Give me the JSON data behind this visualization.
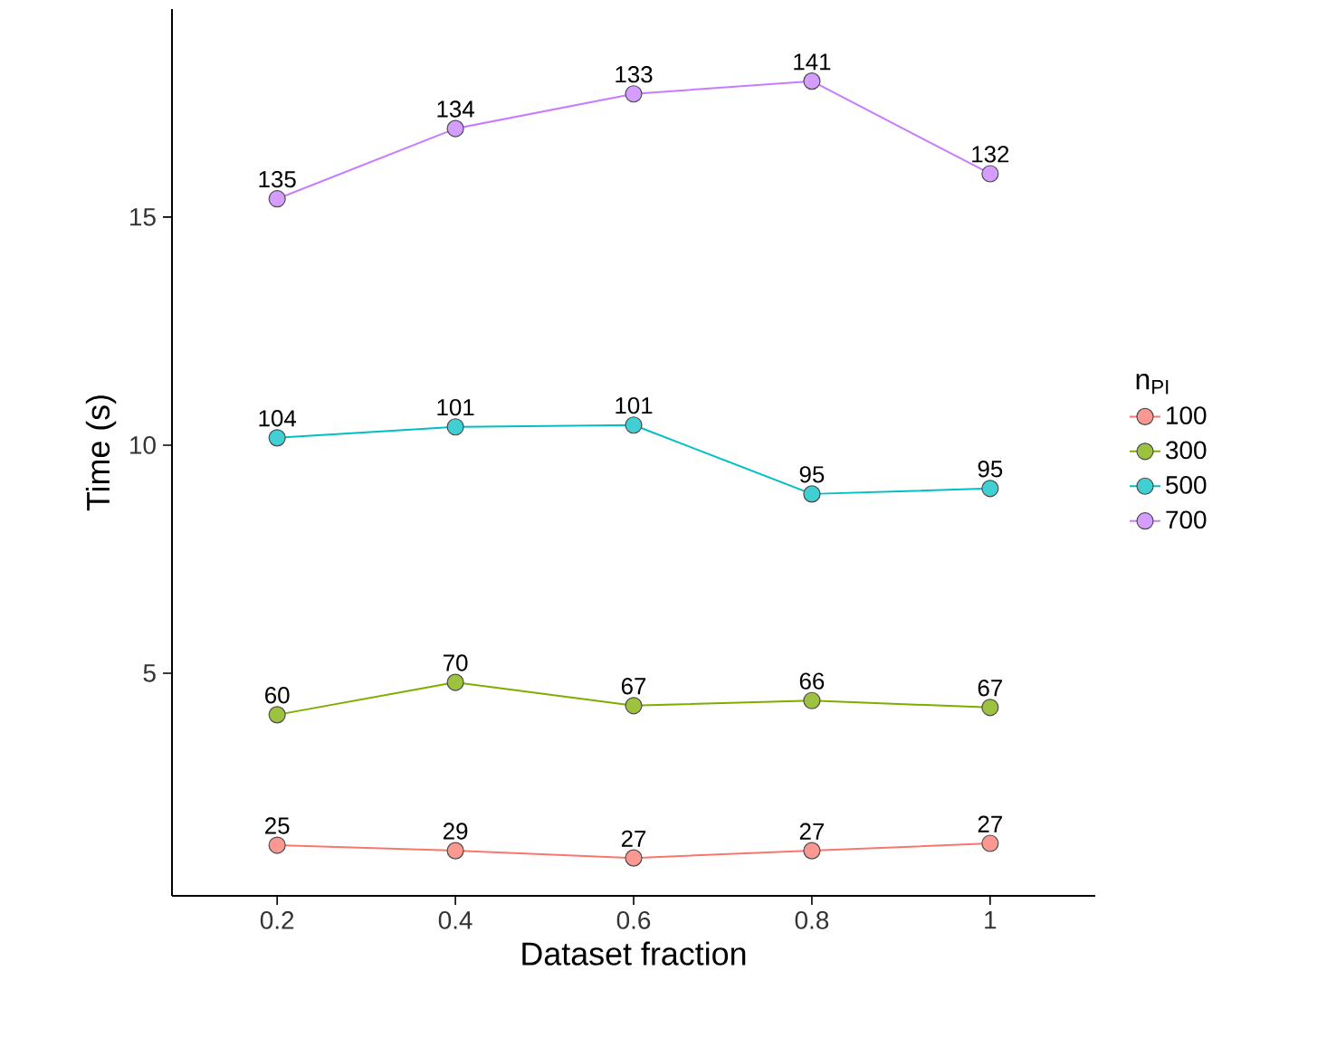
{
  "chart_data": {
    "type": "line",
    "xlabel": "Dataset fraction",
    "ylabel": "Time (s)",
    "legend_title": "n$_{PI}$",
    "x": [
      0.2,
      0.4,
      0.6,
      0.8,
      1
    ],
    "series": [
      {
        "name": "100",
        "color": "#f8766d",
        "values": [
          1.23,
          1.11,
          0.95,
          1.11,
          1.27
        ]
      },
      {
        "name": "300",
        "color": "#7cae00",
        "values": [
          4.09,
          4.8,
          4.29,
          4.4,
          4.25
        ]
      },
      {
        "name": "500",
        "color": "#00bfc4",
        "values": [
          10.16,
          10.4,
          10.44,
          8.93,
          9.05
        ]
      },
      {
        "name": "700",
        "color": "#c77cff",
        "values": [
          15.4,
          16.94,
          17.7,
          17.98,
          15.95
        ]
      }
    ],
    "annotations": [
      {
        "text": "25",
        "x": 0.2,
        "y": 1.23
      },
      {
        "text": "29",
        "x": 0.4,
        "y": 1.11
      },
      {
        "text": "27",
        "x": 0.6,
        "y": 0.95
      },
      {
        "text": "27",
        "x": 0.8,
        "y": 1.11
      },
      {
        "text": "27",
        "x": 1,
        "y": 1.27
      },
      {
        "text": "60",
        "x": 0.2,
        "y": 4.09
      },
      {
        "text": "70",
        "x": 0.4,
        "y": 4.8
      },
      {
        "text": "67",
        "x": 0.6,
        "y": 4.29
      },
      {
        "text": "66",
        "x": 0.8,
        "y": 4.4
      },
      {
        "text": "67",
        "x": 1,
        "y": 4.25
      },
      {
        "text": "104",
        "x": 0.2,
        "y": 10.16
      },
      {
        "text": "101",
        "x": 0.4,
        "y": 10.4
      },
      {
        "text": "101",
        "x": 0.6,
        "y": 10.44
      },
      {
        "text": "95",
        "x": 0.8,
        "y": 8.93
      },
      {
        "text": "95",
        "x": 1,
        "y": 9.05
      },
      {
        "text": "135",
        "x": 0.2,
        "y": 15.4
      },
      {
        "text": "134",
        "x": 0.4,
        "y": 16.94
      },
      {
        "text": "133",
        "x": 0.6,
        "y": 17.7
      },
      {
        "text": "141",
        "x": 0.8,
        "y": 17.98
      },
      {
        "text": "132",
        "x": 1,
        "y": 15.95
      }
    ],
    "xlim": [
      0.082,
      1.118
    ],
    "ylim": [
      0.12,
      19.56
    ],
    "xticks": [
      0.2,
      0.4,
      0.6,
      0.8,
      1
    ],
    "yticks": [
      5,
      10,
      15
    ],
    "grid": false,
    "legend": "right",
    "marker": "circle",
    "line_style": "solid"
  }
}
